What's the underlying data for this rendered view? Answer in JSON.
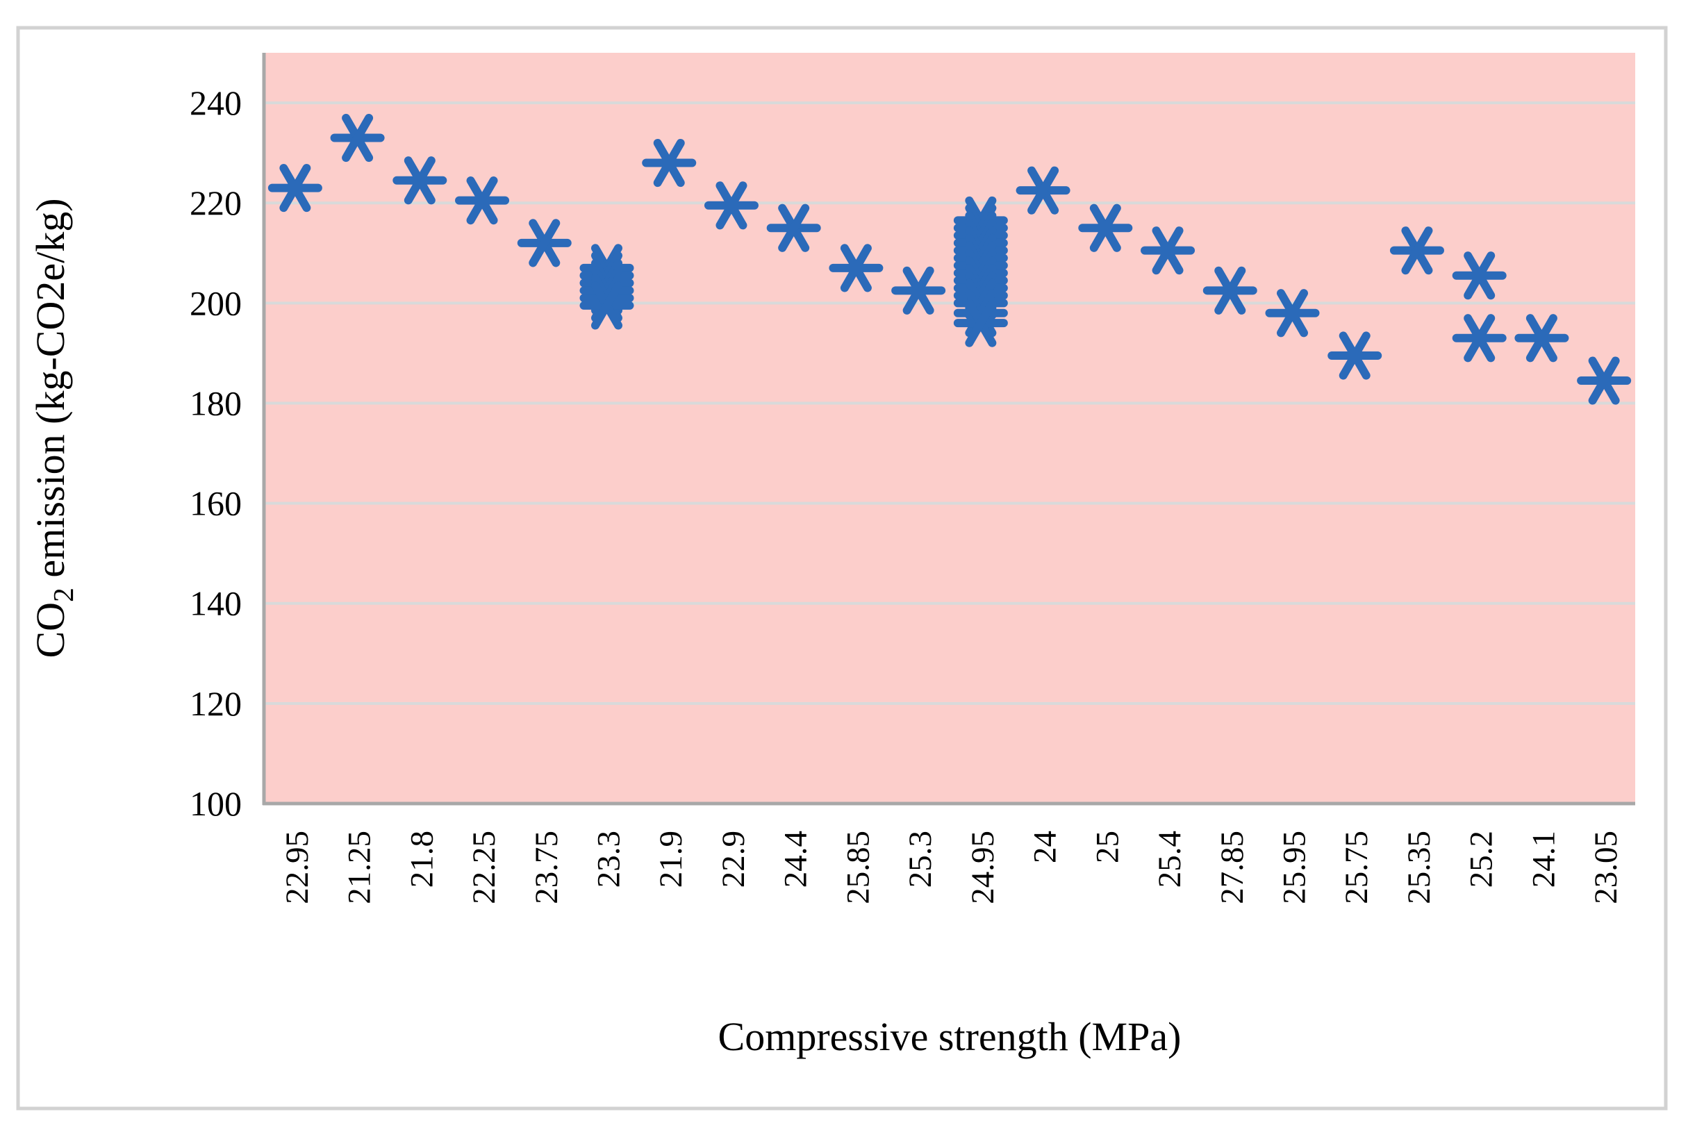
{
  "figure": {
    "background": "#FFFFFF",
    "border_color": "#D2D2D2"
  },
  "chart_data": {
    "type": "scatter",
    "title": "",
    "xlabel": "Compressive strength (MPa)",
    "ylabel": "CO₂ emission (kg-CO2e/kg)",
    "ylabel_parts": {
      "pre": "CO",
      "sub": "2",
      "post": " emission (kg-CO2e/kg)"
    },
    "ylim": [
      100,
      250
    ],
    "yticks": [
      240,
      220,
      200,
      180,
      160,
      140,
      120,
      100
    ],
    "grid": true,
    "legend": "none",
    "plot_bg_color": "#FCCECB",
    "gridline_color": "#D8DADA",
    "axis_line_color": "#A8A8A8",
    "marker_color": "#2B6AB9",
    "categories": [
      "22.95",
      "21.25",
      "21.8",
      "22.25",
      "23.75",
      "23.3",
      "21.9",
      "22.9",
      "24.4",
      "25.85",
      "25.3",
      "24.95",
      "24",
      "25",
      "25.4",
      "27.85",
      "25.95",
      "25.75",
      "25.35",
      "25.2",
      "24.1",
      "23.05"
    ],
    "series": [
      {
        "name": "CO2 emission",
        "marker": "6-spoke-asterisk",
        "color": "#2B6AB9",
        "values_by_category": [
          [
            223
          ],
          [
            233
          ],
          [
            224.5
          ],
          [
            220.5
          ],
          [
            212
          ],
          [
            207,
            205.5,
            204,
            202.5,
            201,
            199.5
          ],
          [
            228
          ],
          [
            219.5
          ],
          [
            215
          ],
          [
            207
          ],
          [
            202.5
          ],
          [
            216.5,
            215,
            213.5,
            212,
            210.5,
            209,
            207.5,
            206,
            204.5,
            203,
            201.5,
            200,
            198,
            196
          ],
          [
            222.5
          ],
          [
            215
          ],
          [
            210.5
          ],
          [
            202.5
          ],
          [
            198
          ],
          [
            189.5
          ],
          [
            210.5
          ],
          [
            205.5,
            193
          ],
          [
            193
          ],
          [
            184.5
          ]
        ]
      }
    ]
  }
}
